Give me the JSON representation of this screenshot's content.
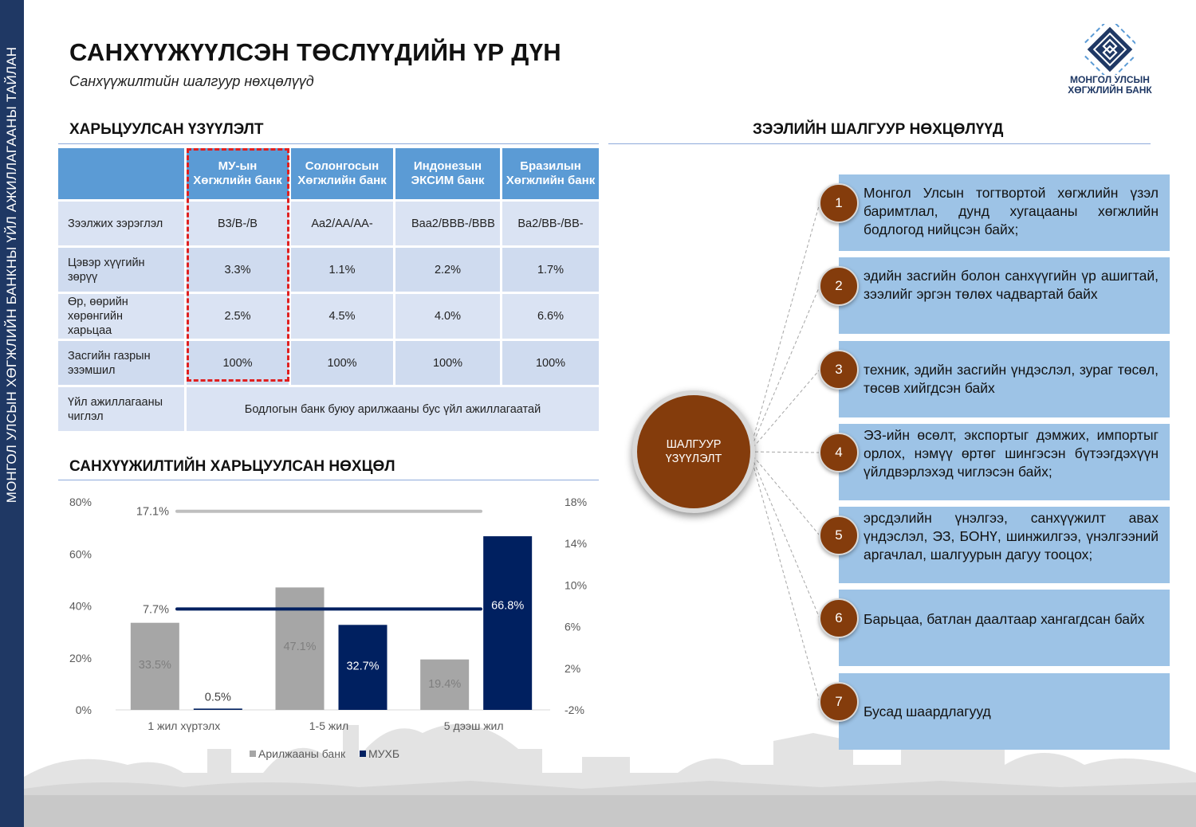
{
  "sidebar": {
    "text": "МОНГОЛ УЛСЫН ХӨГЖЛИЙН БАНКНЫ ҮЙЛ АЖИЛЛАГААНЫ ТАЙЛАН"
  },
  "header": {
    "title": "САНХҮҮЖҮҮЛСЭН ТӨСЛҮҮДИЙН ҮР ДҮН",
    "subtitle": "Санхүүжилтийн шалгуур нөхцөлүүд"
  },
  "logo": {
    "line1": "МОНГОЛ УЛСЫН",
    "line2": "ХӨГЖЛИЙН БАНК"
  },
  "comparison": {
    "title": "ХАРЬЦУУЛСАН ҮЗҮҮЛЭЛТ",
    "headers": [
      "",
      "МУ-ын Хөгжлийн банк",
      "Солонгосын Хөгжлийн банк",
      "Индонезын ЭКСИМ банк",
      "Бразилын Хөгжлийн банк"
    ],
    "rows": [
      {
        "label": "Зээлжих зэрэглэл",
        "values": [
          "B3/B-/B",
          "Aa2/AA/AA-",
          "Baa2/BBB-/BBB",
          "Ba2/BB-/BB-"
        ]
      },
      {
        "label": "Цэвэр хүүгийн зөрүү",
        "values": [
          "3.3%",
          "1.1%",
          "2.2%",
          "1.7%"
        ]
      },
      {
        "label": "Өр, өөрийн хөрөнгийн харьцаа",
        "values": [
          "2.5%",
          "4.5%",
          "4.0%",
          "6.6%"
        ]
      },
      {
        "label": "Засгийн газрын эзэмшил",
        "values": [
          "100%",
          "100%",
          "100%",
          "100%"
        ]
      }
    ],
    "last_row": {
      "label": "Үйл ажиллагааны чиглэл",
      "value": "Бодлогын банк буюу арилжааны бус үйл ажиллагаатай"
    }
  },
  "chart_section": {
    "title": "САНХҮҮЖИЛТИЙН ХАРЬЦУУЛСАН НӨХЦӨЛ"
  },
  "chart_data": {
    "type": "bar",
    "categories": [
      "1 жил хүртэлх",
      "1-5 жил",
      "5 дээш жил"
    ],
    "series": [
      {
        "name": "Арилжааны банк",
        "values": [
          33.5,
          47.1,
          19.4
        ],
        "labels": [
          "33.5%",
          "47.1%",
          "19.4%"
        ],
        "color": "#a6a6a6",
        "axis": "left"
      },
      {
        "name": "МУХБ",
        "values": [
          0.5,
          32.7,
          66.8
        ],
        "labels": [
          "0.5%",
          "32.7%",
          "66.8%"
        ],
        "color": "#002060",
        "axis": "left"
      }
    ],
    "reference_lines": [
      {
        "value": 17.1,
        "label": "17.1%",
        "color": "#bfbfbf",
        "axis": "right"
      },
      {
        "value": 7.7,
        "label": "7.7%",
        "color": "#002060",
        "axis": "right"
      }
    ],
    "y_left": {
      "range": [
        0,
        80
      ],
      "ticks": [
        "80%",
        "60%",
        "40%",
        "20%",
        "0%"
      ]
    },
    "y_right": {
      "range": [
        -2,
        18
      ],
      "ticks": [
        "18%",
        "14%",
        "10%",
        "6%",
        "2%",
        "-2%"
      ]
    },
    "legend_position": "bottom",
    "grid": false
  },
  "criteria": {
    "title": "ЗЭЭЛИЙН ШАЛГУУР НӨХЦӨЛҮҮД",
    "center_label": "ШАЛГУУР ҮЗҮҮЛЭЛТ",
    "items": [
      {
        "num": "1",
        "text": "Монгол Улсын тогтвортой хөгжлийн үзэл баримтлал, дунд хугацааны хөгжлийн бодлогод нийцсэн байх;"
      },
      {
        "num": "2",
        "text": "эдийн засгийн болон санхүүгийн үр ашигтай, зээлийг эргэн төлөх чадвартай байх"
      },
      {
        "num": "3",
        "text": "техник, эдийн засгийн үндэслэл, зураг төсөл, төсөв хийгдсэн байх"
      },
      {
        "num": "4",
        "text": "ЭЗ-ийн өсөлт, экспортыг дэмжих, импортыг орлох, нэмүү өртөг шингэсэн бүтээгдэхүүн үйлдвэрлэхэд чиглэсэн байх;"
      },
      {
        "num": "5",
        "text": "эрсдэлийн үнэлгээ, санхүүжилт авах үндэслэл, ЭЗ, БОНҮ, шинжилгээ, үнэлгээний аргачлал, шалгуурын дагуу тооцох;"
      },
      {
        "num": "6",
        "text": "Барьцаа, батлан даалтаар хангагдсан байх"
      },
      {
        "num": "7",
        "text": "Бусад шаардлагууд"
      }
    ]
  },
  "colors": {
    "navy": "#1f3864",
    "accent_blue": "#5b9bd5",
    "brown": "#843c0c",
    "box_blue": "#9dc3e6"
  }
}
